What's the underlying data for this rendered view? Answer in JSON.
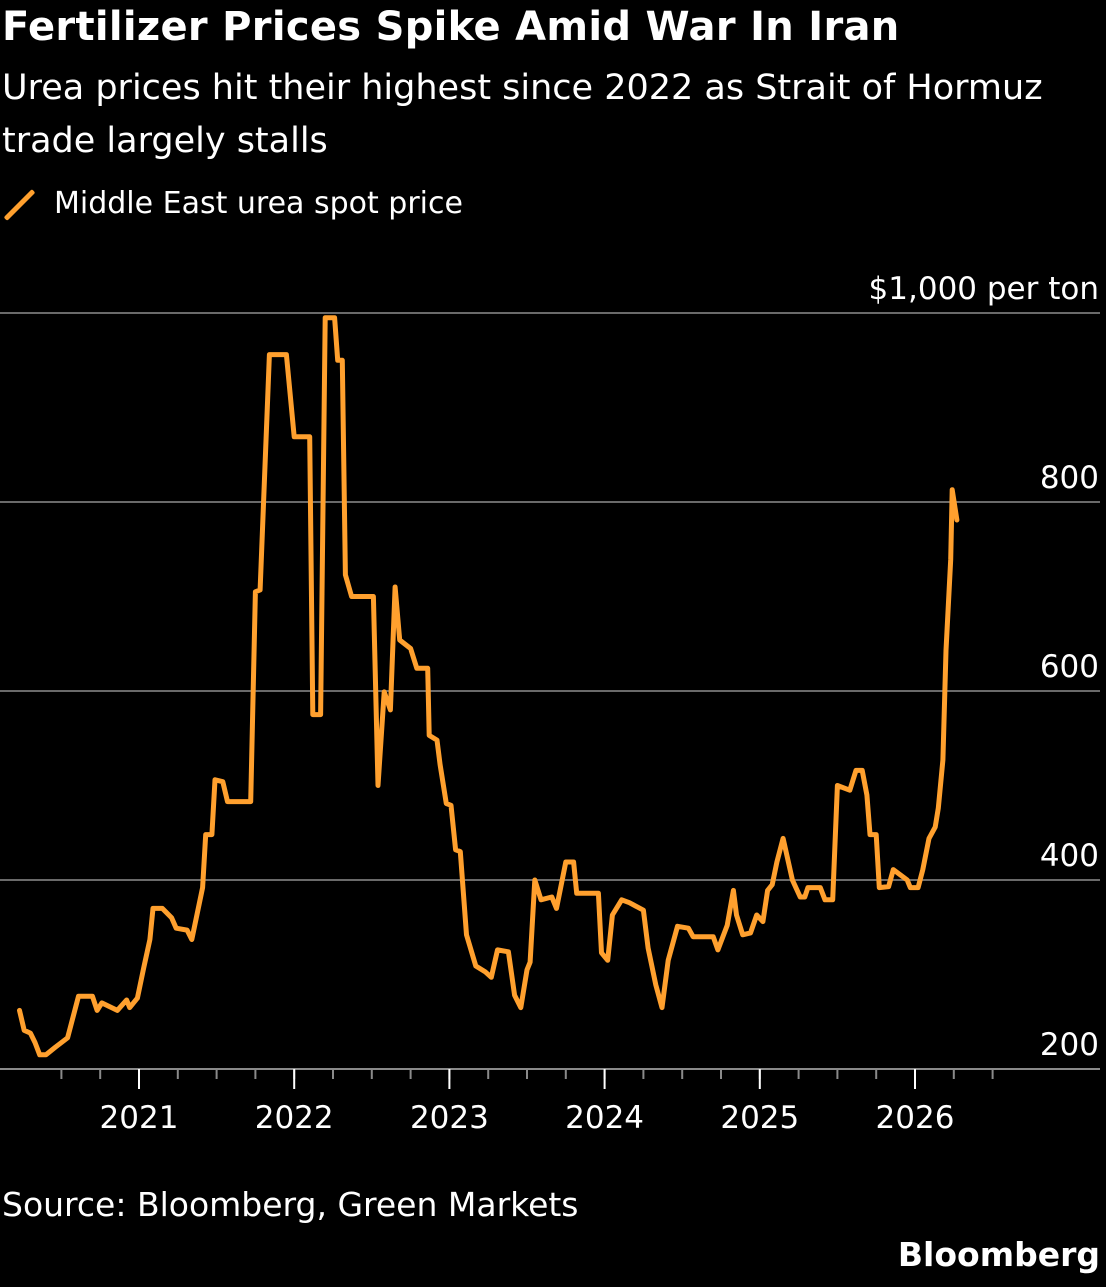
{
  "title": "Fertilizer Prices Spike Amid War In Iran",
  "subtitle": "Urea prices hit their highest since 2022 as Strait of Hormuz trade largely stalls",
  "source": "Source: Bloomberg, Green Markets",
  "brand": "Bloomberg",
  "chart_data": {
    "type": "line",
    "title": "Fertilizer Prices Spike Amid War In Iran",
    "xlabel": "",
    "ylabel": "$1,000 per ton",
    "ylim": [
      200,
      1000
    ],
    "xlim": [
      2020.1,
      2027.1
    ],
    "y_ticks": [
      200,
      400,
      600,
      800,
      1000
    ],
    "y_tick_labels": [
      "200",
      "400",
      "600",
      "800",
      "$1,000 per ton"
    ],
    "x_ticks": [
      2021,
      2022,
      2023,
      2024,
      2025,
      2026
    ],
    "x_tick_labels": [
      "2021",
      "2022",
      "2023",
      "2024",
      "2025",
      "2026"
    ],
    "grid": true,
    "legend_placement": "top-left",
    "color": "#ffa02e",
    "series": [
      {
        "name": "Middle East urea spot price",
        "x": [
          2020.23,
          2020.26,
          2020.3,
          2020.33,
          2020.36,
          2020.4,
          2020.46,
          2020.54,
          2020.57,
          2020.61,
          2020.7,
          2020.73,
          2020.76,
          2020.86,
          2020.92,
          2020.94,
          2020.99,
          2021.03,
          2021.07,
          2021.09,
          2021.15,
          2021.21,
          2021.24,
          2021.31,
          2021.34,
          2021.41,
          2021.43,
          2021.47,
          2021.49,
          2021.54,
          2021.57,
          2021.72,
          2021.75,
          2021.78,
          2021.84,
          2021.95,
          2022.0,
          2022.1,
          2022.12,
          2022.17,
          2022.2,
          2022.26,
          2022.28,
          2022.31,
          2022.33,
          2022.37,
          2022.51,
          2022.54,
          2022.58,
          2022.62,
          2022.65,
          2022.68,
          2022.75,
          2022.79,
          2022.86,
          2022.87,
          2022.92,
          2022.94,
          2022.98,
          2023.01,
          2023.04,
          2023.07,
          2023.11,
          2023.17,
          2023.23,
          2023.27,
          2023.31,
          2023.38,
          2023.42,
          2023.46,
          2023.5,
          2023.52,
          2023.55,
          2023.59,
          2023.66,
          2023.69,
          2023.75,
          2023.8,
          2023.82,
          2023.96,
          2023.98,
          2024.02,
          2024.05,
          2024.11,
          2024.16,
          2024.25,
          2024.28,
          2024.33,
          2024.37,
          2024.41,
          2024.47,
          2024.54,
          2024.57,
          2024.7,
          2024.73,
          2024.79,
          2024.83,
          2024.85,
          2024.89,
          2024.94,
          2024.98,
          2025.02,
          2025.05,
          2025.08,
          2025.11,
          2025.15,
          2025.21,
          2025.26,
          2025.29,
          2025.31,
          2025.39,
          2025.42,
          2025.47,
          2025.5,
          2025.58,
          2025.62,
          2025.66,
          2025.69,
          2025.71,
          2025.75,
          2025.77,
          2025.83,
          2025.86,
          2025.9,
          2025.95,
          2025.97,
          2026.02,
          2026.05,
          2026.09,
          2026.13,
          2026.15,
          2026.18,
          2026.2,
          2026.23,
          2026.24,
          2026.27
        ],
        "values": [
          262,
          241,
          238,
          228,
          215,
          215,
          223,
          233,
          252,
          277,
          277,
          262,
          270,
          262,
          273,
          265,
          275,
          307,
          337,
          370,
          370,
          360,
          349,
          347,
          337,
          392,
          448,
          448,
          506,
          504,
          483,
          483,
          705,
          707,
          956,
          956,
          869,
          869,
          575,
          575,
          995,
          995,
          950,
          950,
          723,
          700,
          700,
          500,
          599,
          580,
          710,
          654,
          645,
          624,
          624,
          553,
          548,
          522,
          481,
          479,
          432,
          430,
          342,
          309,
          303,
          297,
          326,
          324,
          278,
          265,
          305,
          313,
          400,
          379,
          382,
          370,
          419,
          419,
          386,
          386,
          323,
          315,
          363,
          379,
          376,
          368,
          328,
          289,
          265,
          315,
          351,
          349,
          340,
          340,
          326,
          352,
          389,
          363,
          342,
          344,
          363,
          356,
          389,
          395,
          419,
          444,
          400,
          382,
          382,
          392,
          392,
          379,
          379,
          500,
          495,
          516,
          516,
          490,
          448,
          448,
          392,
          393,
          411,
          406,
          400,
          392,
          392,
          411,
          444,
          456,
          476,
          527,
          643,
          739,
          813,
          781
        ]
      }
    ]
  }
}
